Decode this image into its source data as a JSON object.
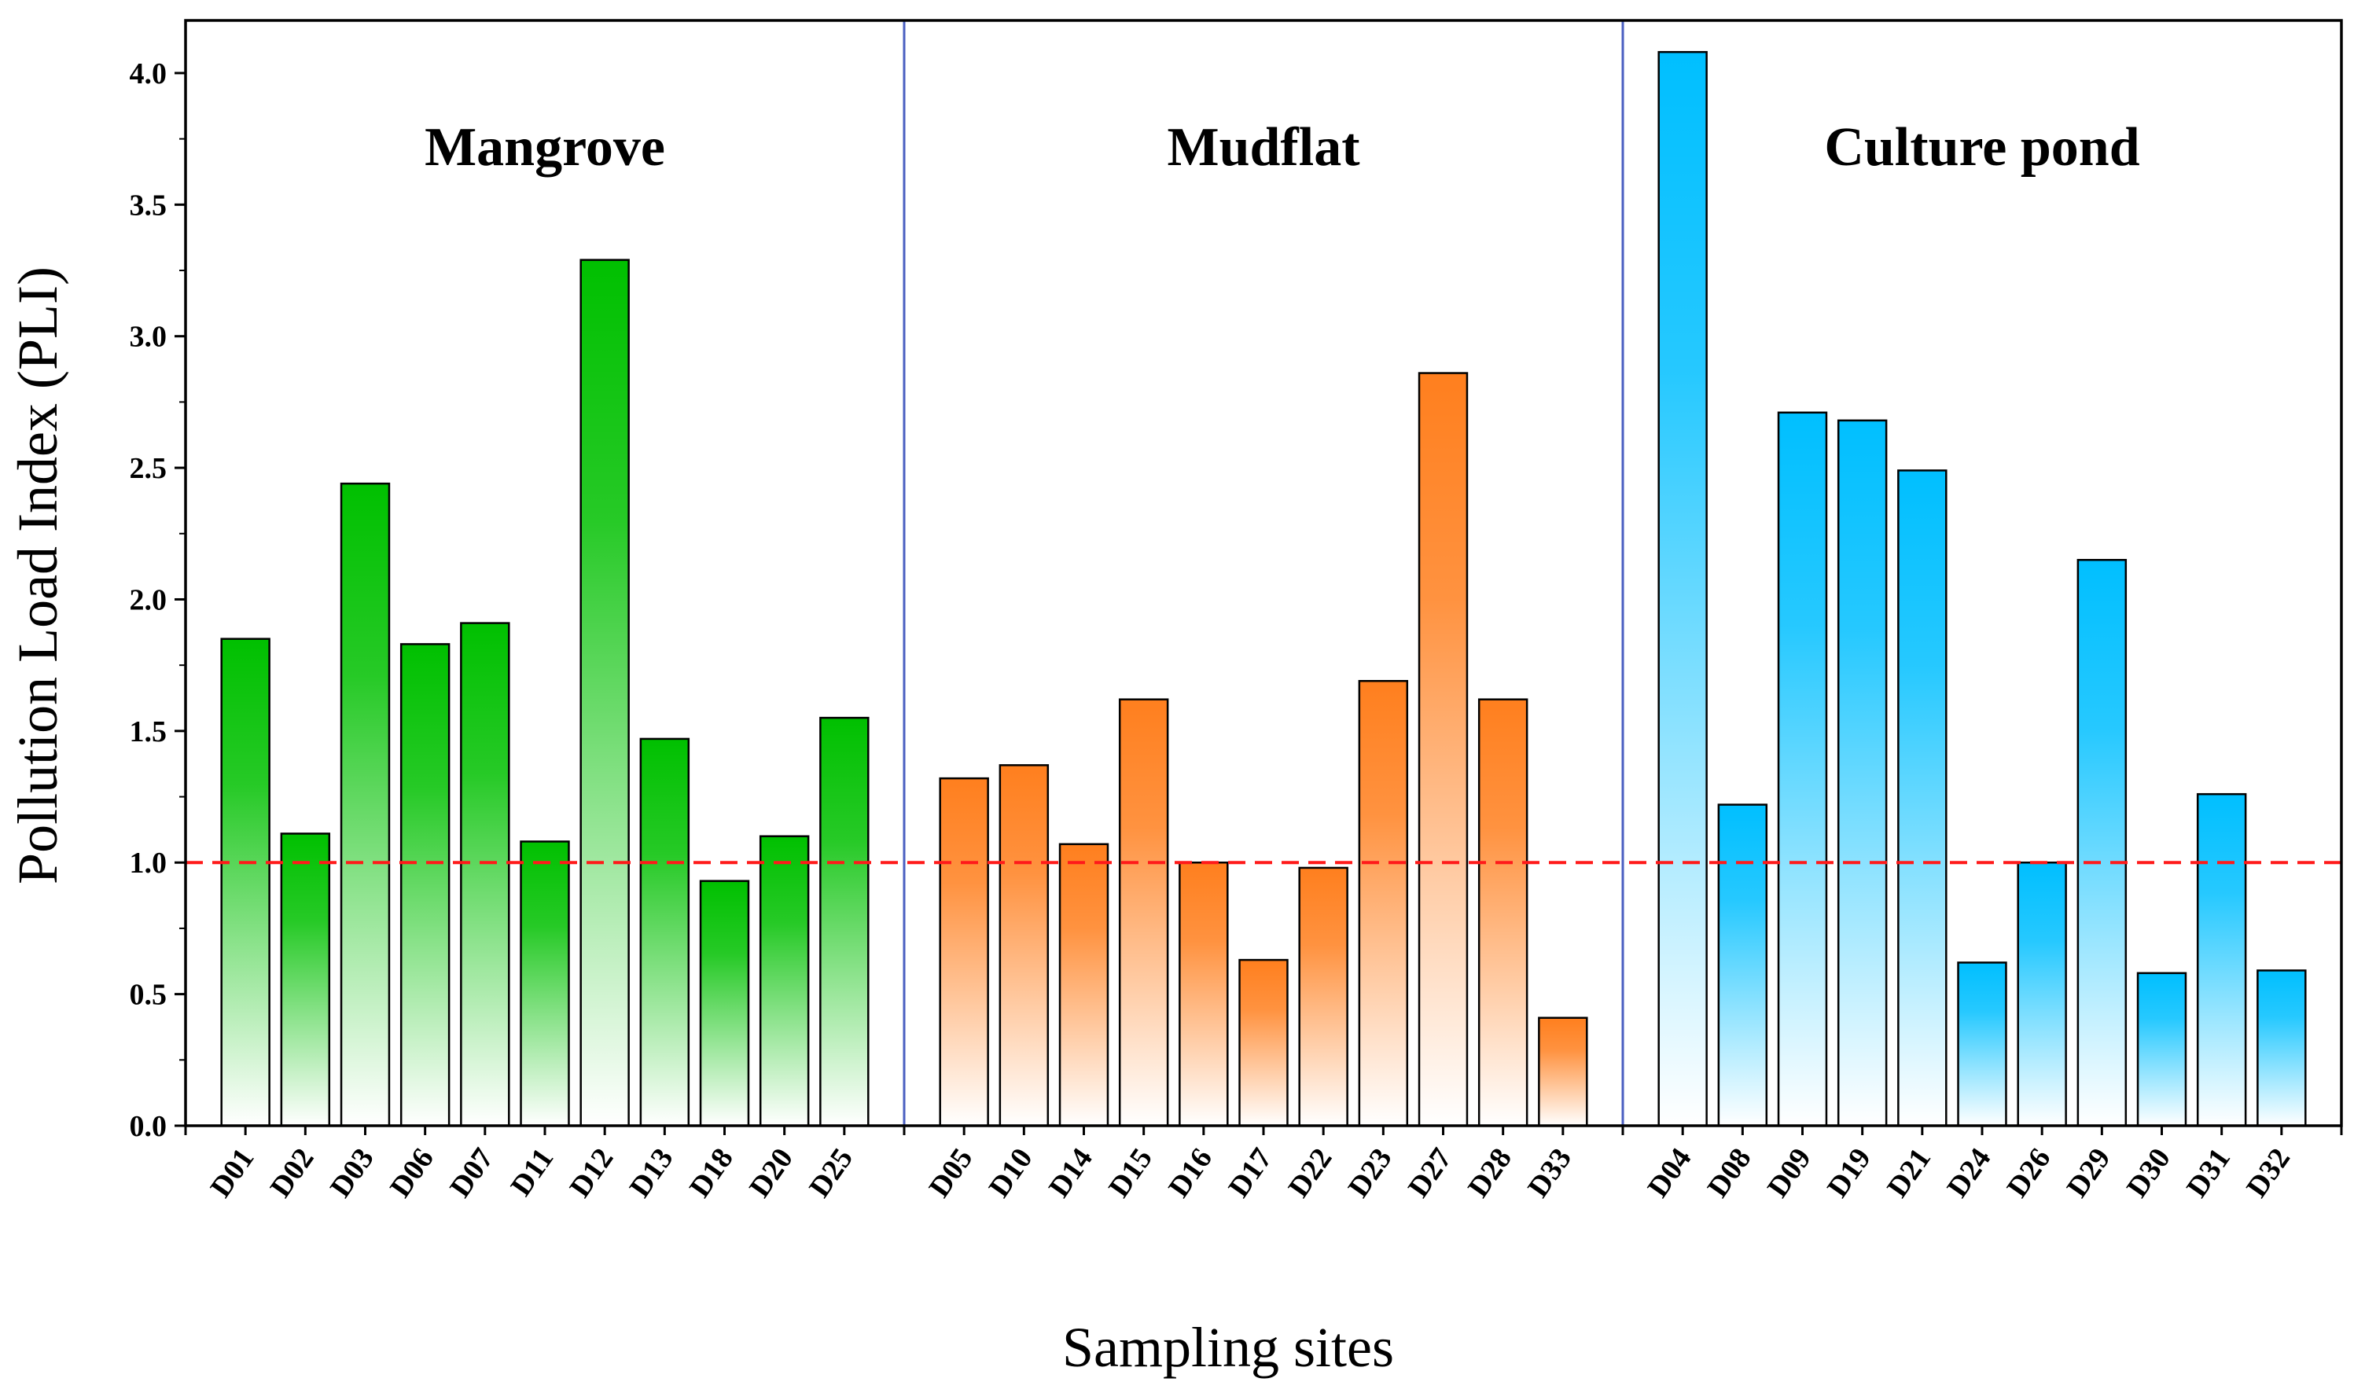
{
  "chart_data": {
    "type": "bar",
    "xlabel": "Sampling sites",
    "ylabel": "Pollution Load Index (PLI)",
    "ylim": [
      0,
      4.2
    ],
    "yticks": [
      "0.0",
      "0.5",
      "1.0",
      "1.5",
      "2.0",
      "2.5",
      "3.0",
      "3.5",
      "4.0"
    ],
    "reference_line": {
      "value": 1.0,
      "style": "dashed",
      "color": "#ff1a1a"
    },
    "separator_color": "#4a5fc1",
    "groups": [
      {
        "name": "Mangrove",
        "color": "#00c000",
        "categories": [
          "D01",
          "D02",
          "D03",
          "D06",
          "D07",
          "D11",
          "D12",
          "D13",
          "D18",
          "D20",
          "D25"
        ],
        "values": [
          1.85,
          1.11,
          2.44,
          1.83,
          1.91,
          1.08,
          3.29,
          1.47,
          0.93,
          1.1,
          1.55
        ]
      },
      {
        "name": "Mudflat",
        "color": "#ff7f1e",
        "categories": [
          "D05",
          "D10",
          "D14",
          "D15",
          "D16",
          "D17",
          "D22",
          "D23",
          "D27",
          "D28",
          "D33"
        ],
        "values": [
          1.32,
          1.37,
          1.07,
          1.62,
          1.0,
          0.63,
          0.98,
          1.69,
          2.86,
          1.62,
          0.41
        ]
      },
      {
        "name": "Culture pond",
        "color": "#00bfff",
        "categories": [
          "D04",
          "D08",
          "D09",
          "D19",
          "D21",
          "D24",
          "D26",
          "D29",
          "D30",
          "D31",
          "D32"
        ],
        "values": [
          4.08,
          1.22,
          2.71,
          2.68,
          2.49,
          0.62,
          1.0,
          2.15,
          0.58,
          1.26,
          0.59
        ]
      }
    ]
  }
}
